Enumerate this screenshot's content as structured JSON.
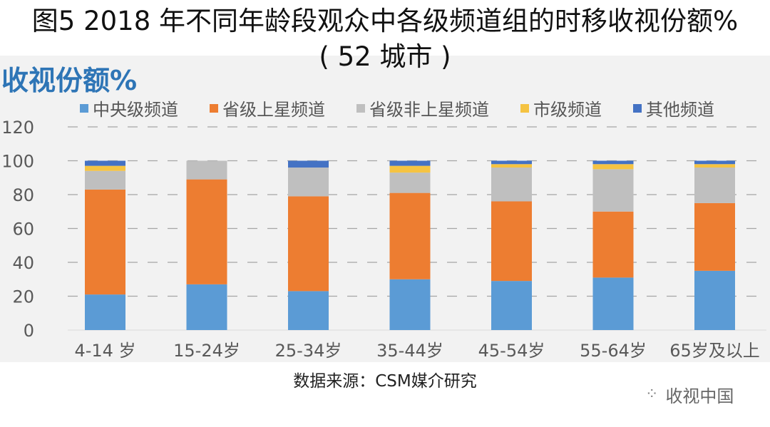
{
  "title_line1": "图5 2018 年不同年龄段观众中各级频道组的时移收视份额%",
  "title_line2": "( 52 城市 )",
  "source": "数据来源：CSM媒介研究",
  "watermark": "收视中国",
  "watermark_icon": "wechat-icon",
  "chart_data": {
    "type": "bar",
    "stacked": true,
    "title": "",
    "ylabel": "收视份额%",
    "xlabel": "",
    "ylim": [
      0,
      120
    ],
    "yticks": [
      0,
      20,
      40,
      60,
      80,
      100,
      120
    ],
    "grid": true,
    "legend_position": "top",
    "categories": [
      "4-14 岁",
      "15-24岁",
      "25-34岁",
      "35-44岁",
      "45-54岁",
      "55-64岁",
      "65岁及以上"
    ],
    "series": [
      {
        "name": "中央级频道",
        "color": "#5b9bd5",
        "values": [
          21,
          27,
          23,
          30,
          29,
          31,
          35
        ]
      },
      {
        "name": "省级上星频道",
        "color": "#ed7d31",
        "values": [
          62,
          62,
          56,
          51,
          47,
          39,
          40
        ]
      },
      {
        "name": "省级非上星频道",
        "color": "#bfbfbf",
        "values": [
          11,
          11,
          17,
          12,
          20,
          25,
          21
        ]
      },
      {
        "name": "市级频道",
        "color": "#f5c342",
        "values": [
          3,
          0,
          0,
          4,
          2,
          3,
          2
        ]
      },
      {
        "name": "其他频道",
        "color": "#4472c4",
        "values": [
          3,
          0,
          4,
          3,
          2,
          2,
          2
        ]
      }
    ]
  }
}
